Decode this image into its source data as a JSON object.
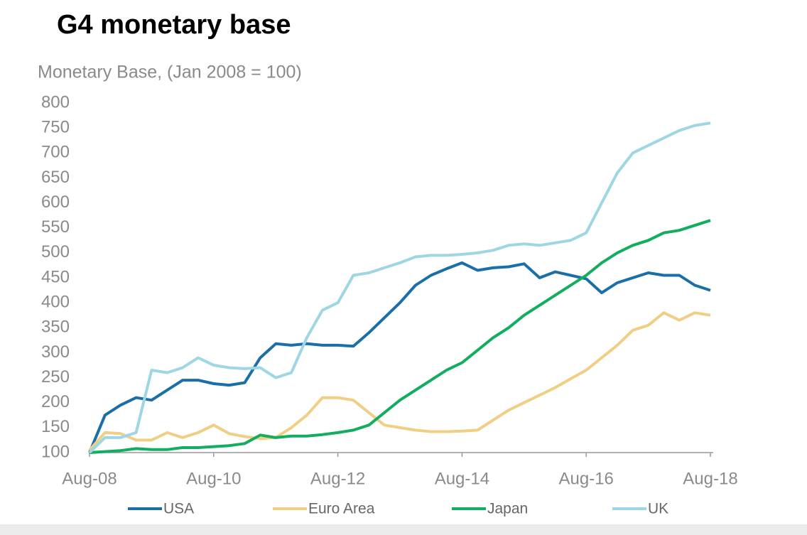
{
  "chart_data": {
    "type": "line",
    "title": "G4 monetary base",
    "y_label": "Monetary Base, (Jan 2008 = 100)",
    "categories": [
      "Aug-08",
      null,
      null,
      null,
      null,
      null,
      null,
      null,
      "Aug-10",
      null,
      null,
      null,
      null,
      null,
      null,
      null,
      "Aug-12",
      null,
      null,
      null,
      null,
      null,
      null,
      null,
      "Aug-14",
      null,
      null,
      null,
      null,
      null,
      null,
      null,
      "Aug-16",
      null,
      null,
      null,
      null,
      null,
      null,
      null,
      "Aug-18"
    ],
    "series": [
      {
        "name": "USA",
        "color": "#1a6fa8",
        "values": [
          100,
          175,
          195,
          210,
          205,
          225,
          245,
          245,
          238,
          235,
          240,
          290,
          318,
          315,
          318,
          315,
          315,
          313,
          340,
          370,
          400,
          435,
          455,
          468,
          480,
          465,
          470,
          472,
          478,
          450,
          462,
          455,
          448,
          420,
          440,
          450,
          460,
          455,
          455,
          435,
          425
        ]
      },
      {
        "name": "Euro Area",
        "color": "#f0cf85",
        "values": [
          105,
          140,
          138,
          125,
          125,
          140,
          130,
          140,
          155,
          138,
          132,
          128,
          130,
          150,
          175,
          210,
          210,
          205,
          180,
          155,
          150,
          145,
          142,
          142,
          143,
          145,
          165,
          185,
          200,
          215,
          230,
          248,
          265,
          290,
          315,
          345,
          355,
          380,
          365,
          380,
          375
        ]
      },
      {
        "name": "Japan",
        "color": "#12ad5f",
        "values": [
          100,
          102,
          104,
          108,
          106,
          106,
          110,
          110,
          112,
          114,
          118,
          135,
          130,
          133,
          133,
          136,
          140,
          145,
          155,
          180,
          205,
          225,
          245,
          265,
          280,
          305,
          330,
          350,
          375,
          395,
          415,
          435,
          455,
          480,
          500,
          515,
          525,
          540,
          545,
          555,
          565
        ]
      },
      {
        "name": "UK",
        "color": "#9fd6e4",
        "values": [
          100,
          130,
          130,
          140,
          265,
          260,
          270,
          290,
          275,
          270,
          268,
          270,
          250,
          260,
          330,
          385,
          400,
          455,
          460,
          470,
          480,
          492,
          495,
          495,
          497,
          500,
          505,
          515,
          518,
          515,
          520,
          525,
          540,
          600,
          660,
          700,
          715,
          730,
          745,
          755,
          760
        ]
      }
    ],
    "ylim": [
      100,
      800
    ],
    "yticks": [
      100,
      150,
      200,
      250,
      300,
      350,
      400,
      450,
      500,
      550,
      600,
      650,
      700,
      750,
      800
    ],
    "legend": "bottom"
  }
}
